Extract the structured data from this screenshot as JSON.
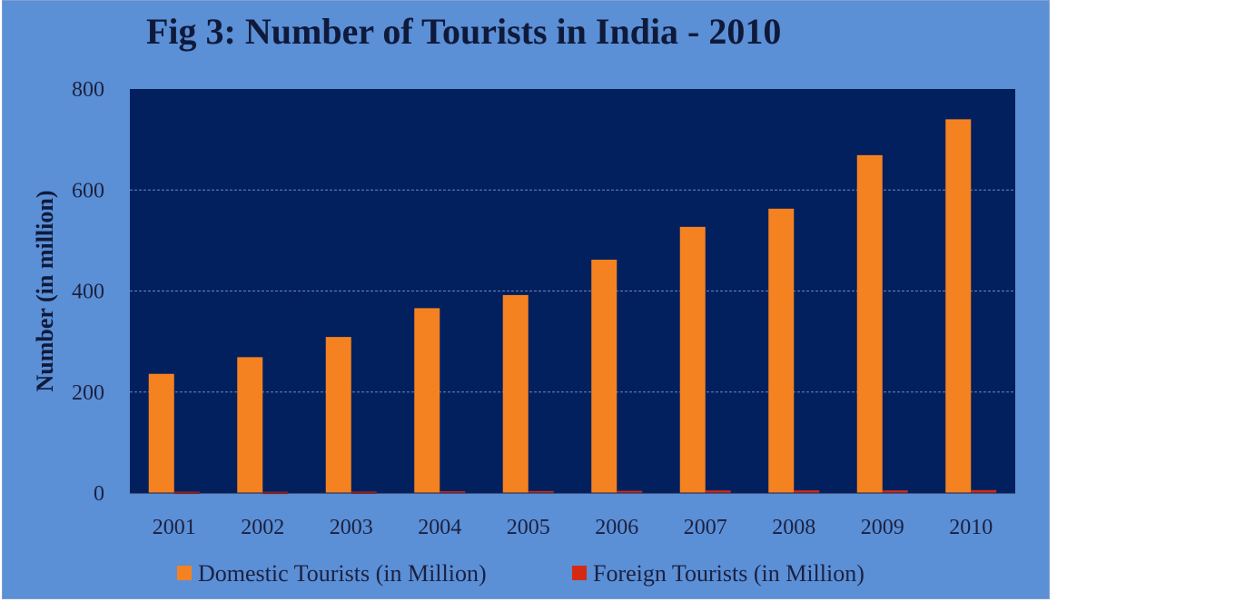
{
  "chart_data": {
    "type": "bar",
    "title": "Fig 3: Number of  Tourists in India - 2010",
    "xlabel": "",
    "ylabel": "Number (in million)",
    "ylim": [
      0,
      800
    ],
    "yticks": [
      0,
      200,
      400,
      600,
      800
    ],
    "grid": true,
    "categories": [
      "2001",
      "2002",
      "2003",
      "2004",
      "2005",
      "2006",
      "2007",
      "2008",
      "2009",
      "2010"
    ],
    "series": [
      {
        "name": "Domestic Tourists (in Million)",
        "color": "#f58220",
        "values": [
          236,
          269,
          309,
          366,
          392,
          462,
          527,
          563,
          669,
          740
        ]
      },
      {
        "name": "Foreign Tourists (in Million)",
        "color": "#d42a14",
        "values": [
          2.5,
          2.4,
          2.7,
          3.5,
          3.9,
          4.4,
          5.1,
          5.3,
          5.2,
          5.8
        ]
      }
    ],
    "legend_position": "bottom",
    "colors": {
      "frame": "#5b8fd6",
      "plot_area": "#03205e",
      "gridline": "#6f86b8"
    }
  }
}
